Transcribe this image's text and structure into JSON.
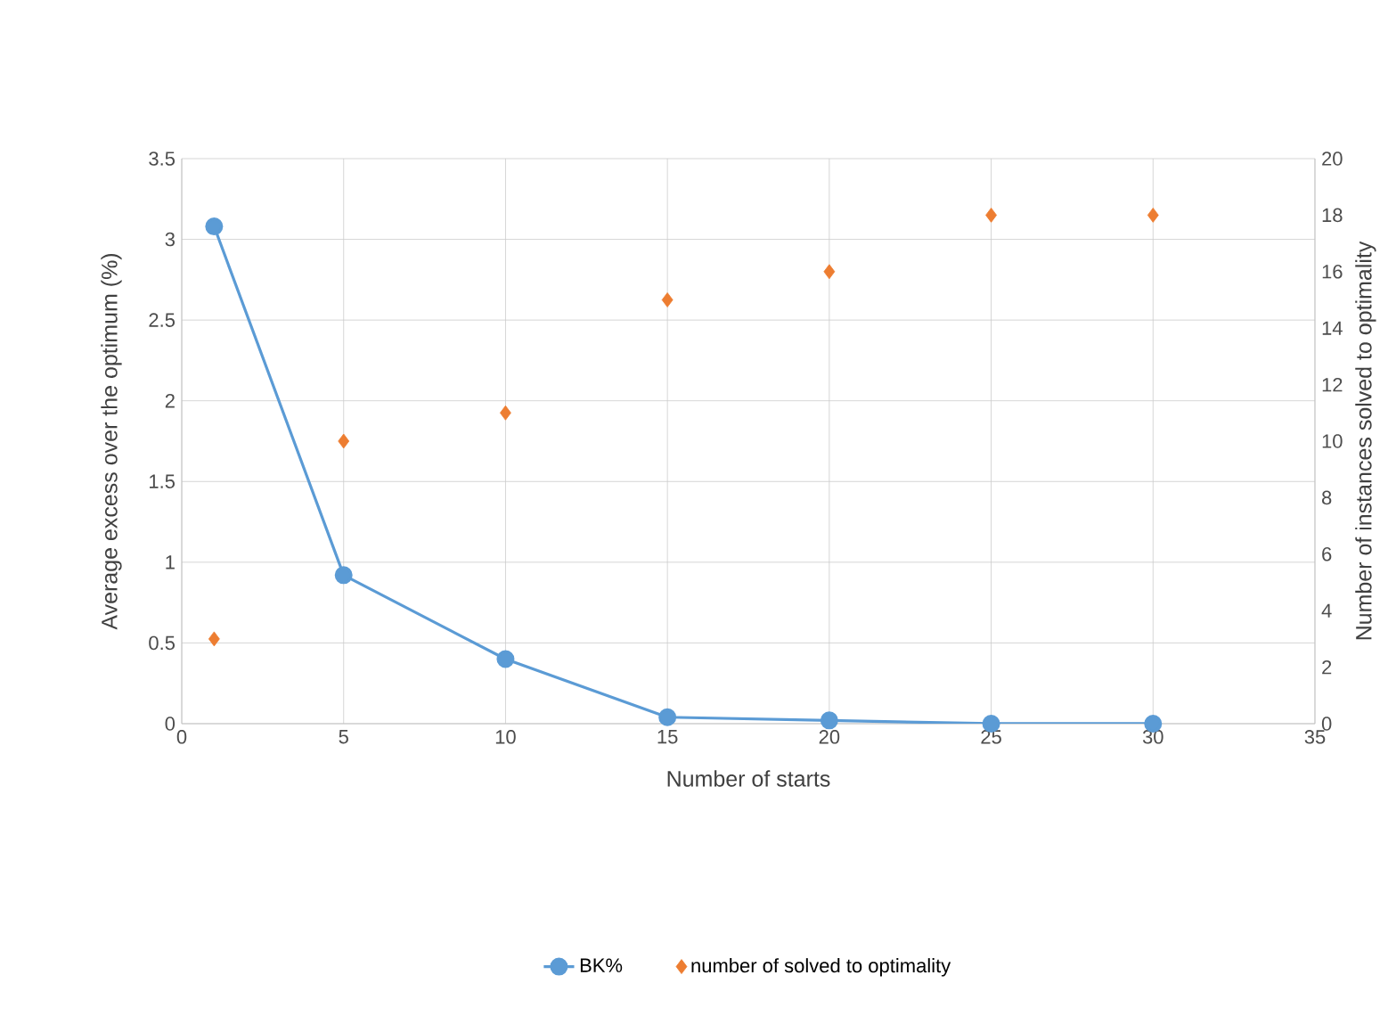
{
  "chart_data": {
    "type": "line",
    "xlabel": "Number of starts",
    "ylabel": "Average excess over the optimum (%)",
    "y2label": "Number of instances solved to optimality",
    "x": [
      1,
      5,
      10,
      15,
      20,
      25,
      30
    ],
    "series": [
      {
        "name": "BK%",
        "color": "#5b9bd5",
        "marker": "circle",
        "values": [
          3.08,
          0.92,
          0.4,
          0.04,
          0.02,
          0.0,
          0.0
        ]
      },
      {
        "name": "number of solved to optimality",
        "color": "#ed7d31",
        "type": "scatter",
        "marker": "diamond",
        "axis": "y2",
        "values": [
          3,
          10,
          11,
          15,
          16,
          18,
          18
        ]
      }
    ],
    "xlim": [
      0,
      35
    ],
    "xticks": [
      0,
      5,
      10,
      15,
      20,
      25,
      30,
      35
    ],
    "ylim": [
      0,
      3.5
    ],
    "yticks": [
      0,
      0.5,
      1,
      1.5,
      2,
      2.5,
      3,
      3.5
    ],
    "y2lim": [
      0,
      20
    ],
    "y2ticks": [
      0,
      2,
      4,
      6,
      8,
      10,
      12,
      14,
      16,
      18,
      20
    ],
    "grid": true,
    "legend": "bottom"
  }
}
